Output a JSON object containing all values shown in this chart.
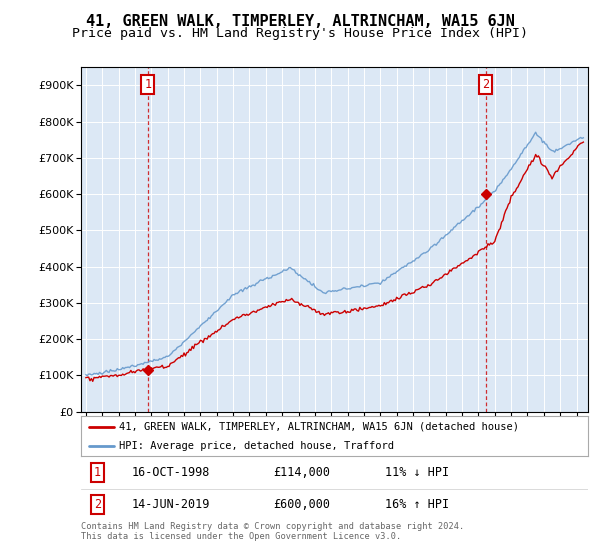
{
  "title": "41, GREEN WALK, TIMPERLEY, ALTRINCHAM, WA15 6JN",
  "subtitle": "Price paid vs. HM Land Registry's House Price Index (HPI)",
  "legend_line1": "41, GREEN WALK, TIMPERLEY, ALTRINCHAM, WA15 6JN (detached house)",
  "legend_line2": "HPI: Average price, detached house, Trafford",
  "annotation1_date": "16-OCT-1998",
  "annotation1_price": "£114,000",
  "annotation1_hpi": "11% ↓ HPI",
  "annotation2_date": "14-JUN-2019",
  "annotation2_price": "£600,000",
  "annotation2_hpi": "16% ↑ HPI",
  "footer": "Contains HM Land Registry data © Crown copyright and database right 2024.\nThis data is licensed under the Open Government Licence v3.0.",
  "sale1_year": 1998.79,
  "sale1_value": 114000,
  "sale2_year": 2019.45,
  "sale2_value": 600000,
  "hpi_color": "#6699cc",
  "price_color": "#cc0000",
  "vline_color": "#cc0000",
  "ylim_min": 0,
  "ylim_max": 950000,
  "chart_bg": "#dce8f5",
  "title_fontsize": 11,
  "subtitle_fontsize": 9.5,
  "background_color": "#ffffff"
}
